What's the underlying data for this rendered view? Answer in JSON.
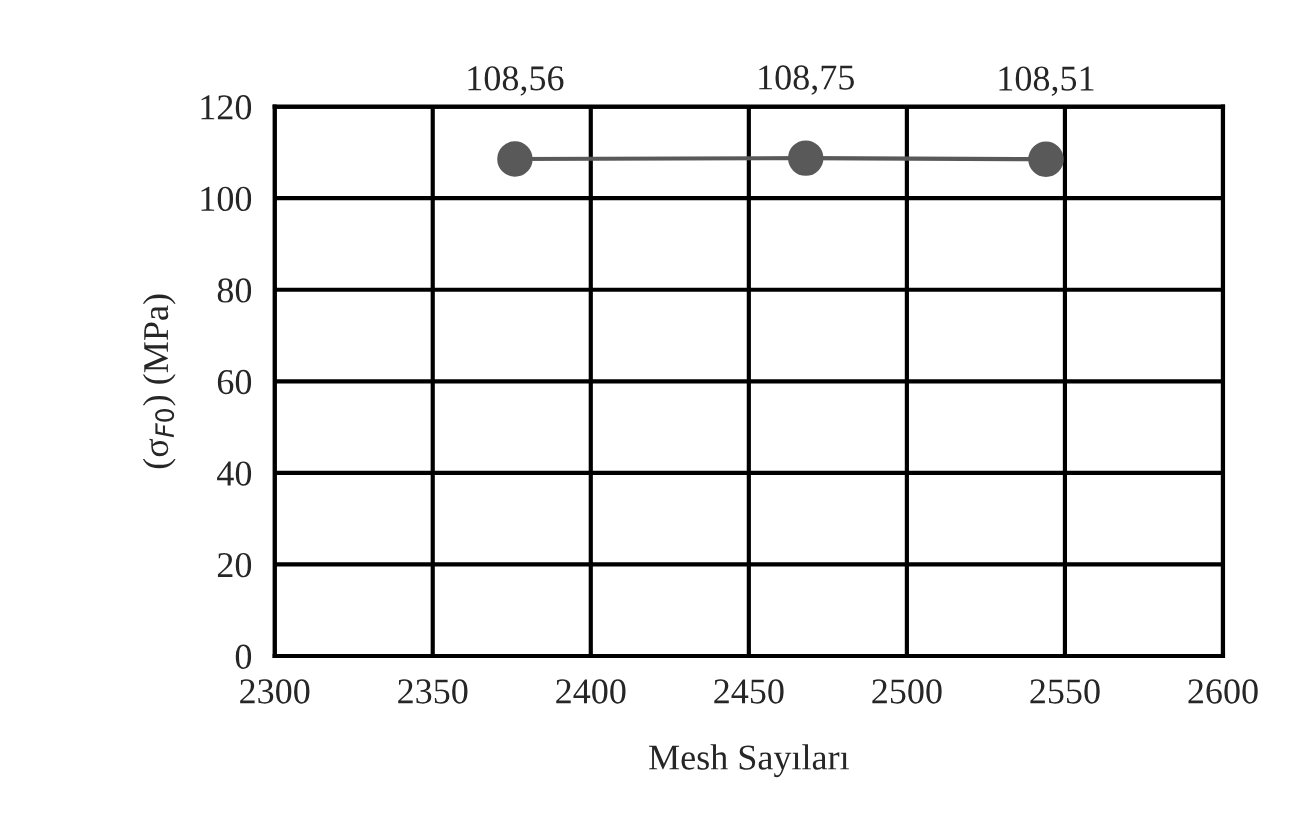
{
  "chart_data": {
    "type": "line",
    "xlabel": "Mesh Sayıları",
    "ylabel": "(σ$_{F0}$) (MPa)",
    "x": [
      2376,
      2468,
      2544
    ],
    "series": [
      {
        "color": "#595959",
        "values": [
          108.56,
          108.75,
          108.51
        ],
        "value_labels": [
          "108,56",
          "108,75",
          "108,51"
        ]
      }
    ],
    "xlim": [
      2300,
      2600
    ],
    "xticks": [
      2300,
      2350,
      2400,
      2450,
      2500,
      2550,
      2600
    ],
    "ylim": [
      0,
      120
    ],
    "yticks": [
      0,
      20,
      40,
      60,
      80,
      100,
      120
    ],
    "grid": true,
    "marker": "circle",
    "line_style": "solid"
  }
}
